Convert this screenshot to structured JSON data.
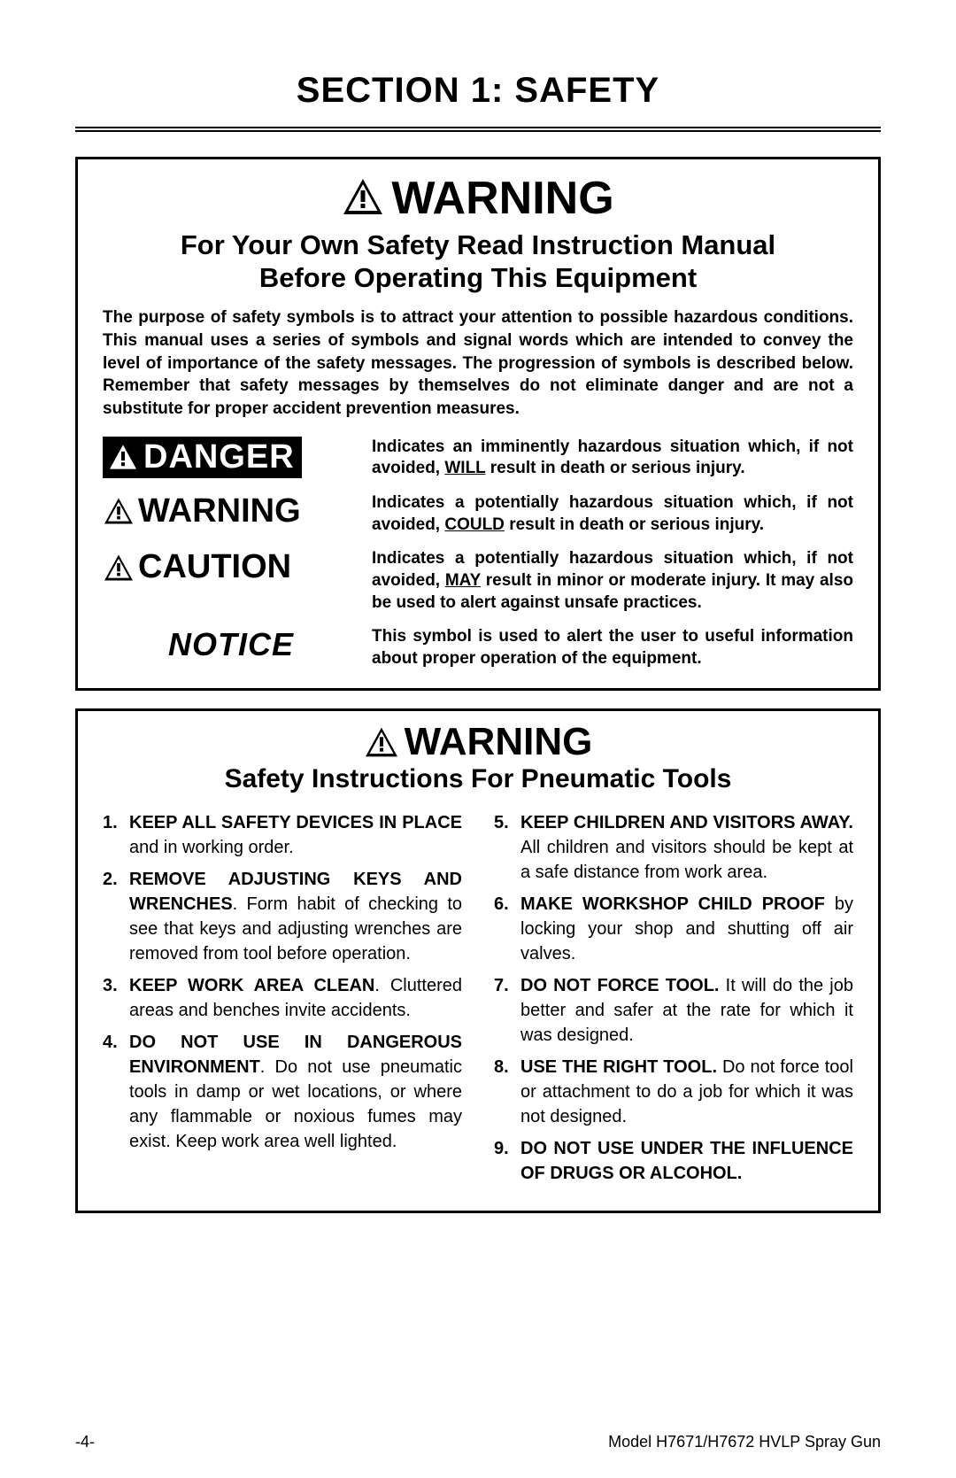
{
  "section_title": "SECTION 1: SAFETY",
  "box1": {
    "header_word": "WARNING",
    "subhead_line1": "For Your Own Safety Read Instruction Manual",
    "subhead_line2": "Before Operating This Equipment",
    "intro": "The purpose of safety symbols is to attract your attention to possible hazardous conditions. This manual uses a series of symbols and signal words which are intended to convey the level of importance of the safety messages. The progression of symbols is described below. Remember that safety messages by themselves do not eliminate danger and are not a substitute for proper accident prevention measures.",
    "rows": {
      "danger": {
        "label": "DANGER",
        "desc_a": "Indicates an imminently hazardous situation which, if not avoided, ",
        "desc_key": "WILL",
        "desc_b": " result in death or serious injury."
      },
      "warning": {
        "label": "WARNING",
        "desc_a": "Indicates a potentially hazardous situation which, if not avoided, ",
        "desc_key": "COULD",
        "desc_b": " result in death or serious injury."
      },
      "caution": {
        "label": "CAUTION",
        "desc_a": "Indicates a potentially hazardous situation which, if not avoided, ",
        "desc_key": "MAY",
        "desc_b": " result in minor or moderate injury. It may also be used to alert against unsafe practices."
      },
      "notice": {
        "label": "NOTICE",
        "desc": "This symbol is used to alert the user to useful information about proper operation of the equipment."
      }
    }
  },
  "box2": {
    "header_word": "WARNING",
    "sub": "Safety Instructions For Pneumatic Tools",
    "left": [
      {
        "n": "1.",
        "lead": "KEEP ALL SAFETY DEVICES IN PLACE",
        "rest": " and in working order."
      },
      {
        "n": "2.",
        "lead": "REMOVE ADJUSTING KEYS AND WRENCHES",
        "rest": ". Form habit of checking to see that keys and adjusting wrenches are removed from tool before operation."
      },
      {
        "n": "3.",
        "lead": "KEEP WORK AREA CLEAN",
        "rest": ". Cluttered areas and benches invite accidents."
      },
      {
        "n": "4.",
        "lead": "DO NOT USE IN DANGEROUS ENVIRONMENT",
        "rest": ". Do not use pneumatic tools in damp or wet locations, or where any flammable or noxious fumes may exist. Keep work area well lighted."
      }
    ],
    "right": [
      {
        "n": "5.",
        "lead": "KEEP CHILDREN AND VISITORS AWAY.",
        "rest": " All children and visitors should be kept at a safe distance from work area."
      },
      {
        "n": "6.",
        "lead": "MAKE WORKSHOP CHILD PROOF",
        "rest": " by locking your shop and shutting off air valves."
      },
      {
        "n": "7.",
        "lead": "DO NOT FORCE TOOL.",
        "rest": " It will do the job better and safer at the rate for which it was designed."
      },
      {
        "n": "8.",
        "lead": "USE THE RIGHT TOOL.",
        "rest": " Do not force tool or attachment to do a job for which it was not designed."
      },
      {
        "n": "9.",
        "lead": "DO NOT USE UNDER THE INFLUENCE OF DRUGS OR ALCOHOL.",
        "rest": ""
      }
    ]
  },
  "footer": {
    "page": "-4-",
    "model": "Model H7671/H7672 HVLP Spray Gun"
  },
  "colors": {
    "text": "#000000",
    "bg": "#ffffff"
  }
}
